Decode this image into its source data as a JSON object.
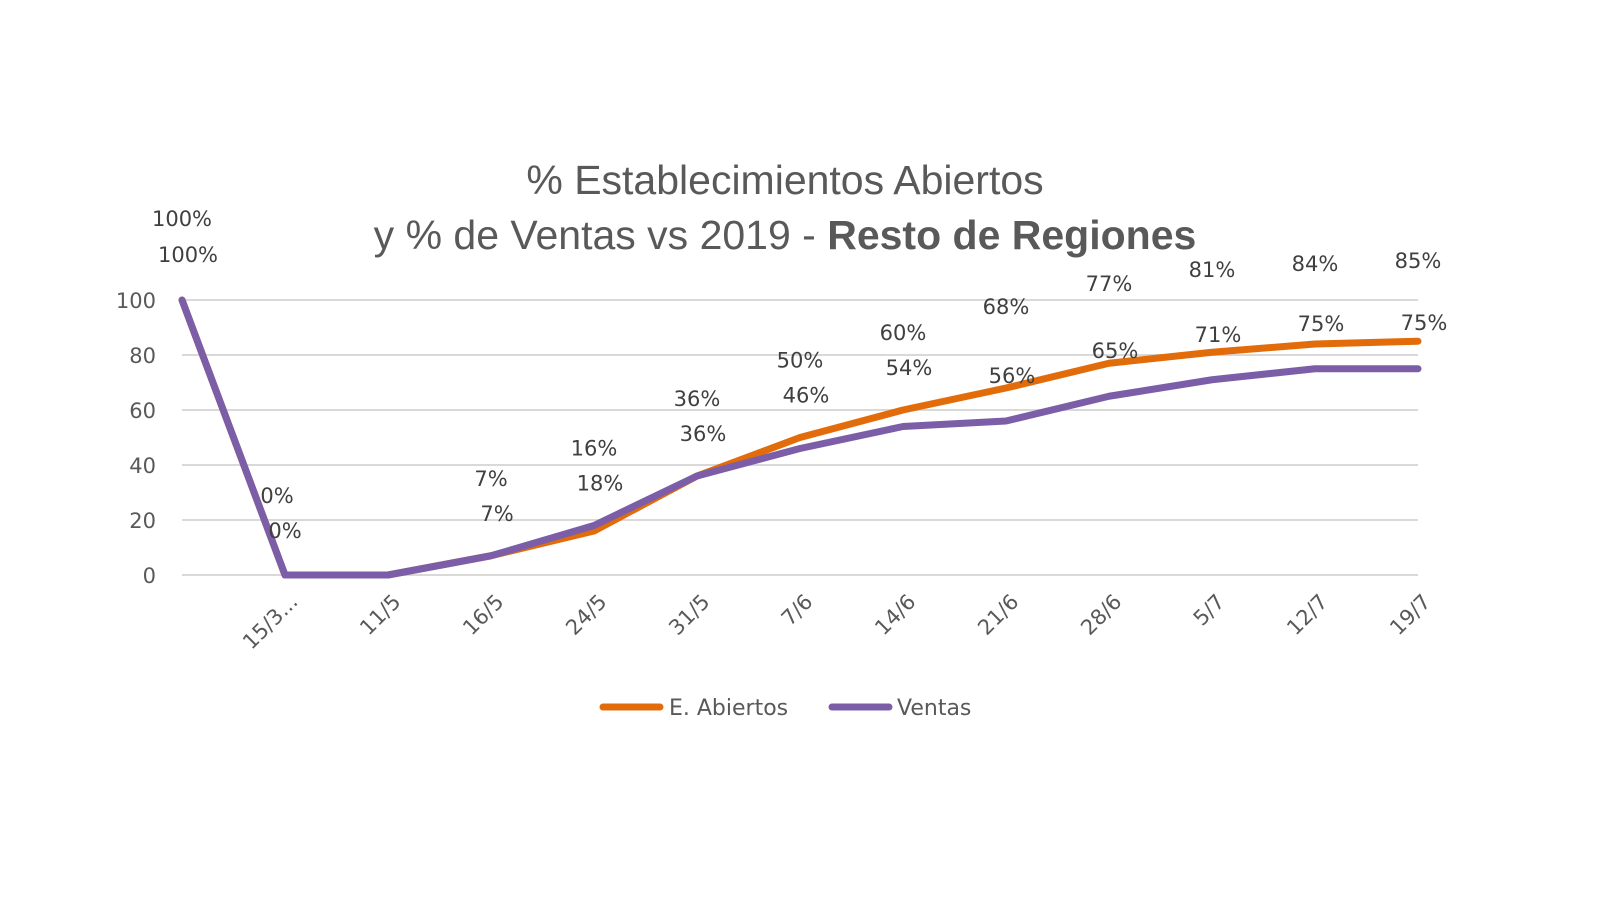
{
  "chart_data": {
    "type": "line",
    "title": {
      "line1": "% Establecimientos  Abiertos",
      "line2_regular": "y % de Ventas vs 2019 - ",
      "line2_bold": "Resto de Regiones"
    },
    "xlabel": "",
    "ylabel": "",
    "ylim": [
      0,
      100
    ],
    "yticks": [
      0,
      20,
      40,
      60,
      80,
      100
    ],
    "grid": true,
    "categories": [
      "",
      "15/3...",
      "11/5",
      "16/5",
      "24/5",
      "31/5",
      "7/6",
      "14/6",
      "21/6",
      "28/6",
      "5/7",
      "12/7",
      "19/7"
    ],
    "series": [
      {
        "name": "E. Abiertos",
        "color": "#E36C0A",
        "values": [
          100,
          0,
          0,
          7,
          16,
          36,
          50,
          60,
          68,
          77,
          81,
          84,
          85
        ],
        "labels": [
          "100%",
          "0%",
          "",
          "7%",
          "16%",
          "36%",
          "50%",
          "60%",
          "68%",
          "77%",
          "81%",
          "84%",
          "85%"
        ]
      },
      {
        "name": "Ventas",
        "color": "#7B5EA7",
        "values": [
          100,
          0,
          0,
          7,
          18,
          36,
          46,
          54,
          56,
          65,
          71,
          75,
          75
        ],
        "labels": [
          "100%",
          "0%",
          "",
          "7%",
          "18%",
          "36%",
          "46%",
          "54%",
          "56%",
          "65%",
          "71%",
          "75%",
          "75%"
        ]
      }
    ],
    "legend": {
      "position": "bottom",
      "items": [
        "E. Abiertos",
        "Ventas"
      ]
    }
  }
}
